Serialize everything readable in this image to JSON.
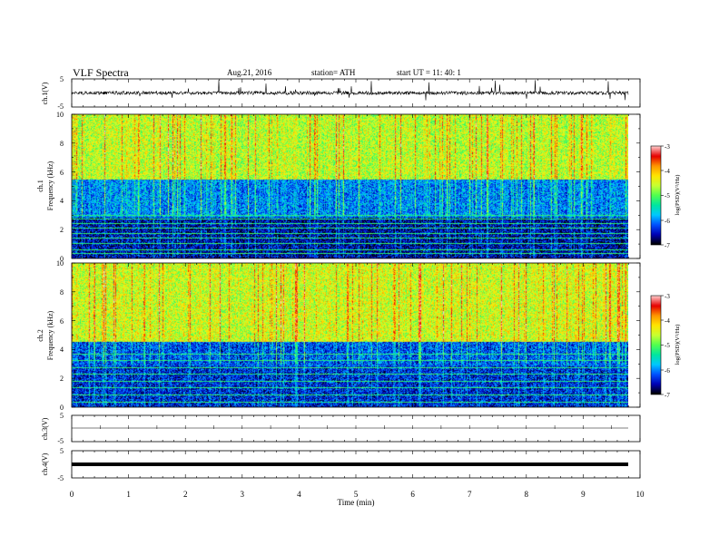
{
  "header": {
    "title": "VLF  Spectra",
    "date": "Aug.21, 2016",
    "station": "station= ATH",
    "start": "start  UT  =   11: 40: 1"
  },
  "colors": {
    "background": "#ffffff",
    "axes": "#000000",
    "colormap": [
      "#000000",
      "#0000b4",
      "#0050ff",
      "#00c8ff",
      "#00e6a0",
      "#50ff50",
      "#c8ff32",
      "#ffe600",
      "#ff9600",
      "#e60000",
      "#ffc8c8"
    ]
  },
  "chart_data": [
    {
      "type": "line",
      "panel": "ch1-waveform",
      "ylabel": "ch.1(V)",
      "ylim": [
        -5,
        5
      ],
      "yticks": [
        "5",
        "-5"
      ],
      "xlim": [
        0,
        10
      ],
      "mean": 0,
      "noise_amplitude": 1.2,
      "spike_amplitude": 3.5
    },
    {
      "type": "heatmap",
      "panel": "ch1-spectrogram",
      "ylabel": "ch.1",
      "ylabel2": "Frequency  (kHz)",
      "ylim": [
        0,
        10
      ],
      "yticks": [
        "0",
        "2",
        "4",
        "6",
        "8",
        "10"
      ],
      "xlim": [
        0,
        10
      ],
      "data_end_min": 9.8,
      "colorbar": {
        "label": "log(PSD)(V²/Hz)",
        "range": [
          -7,
          -3
        ],
        "ticks": [
          "-3",
          "-4",
          "-5",
          "-6",
          "-7"
        ]
      },
      "bands_khz": [
        {
          "from": 0,
          "to": 2.8,
          "level": -6.6
        },
        {
          "from": 2.8,
          "to": 5.5,
          "level": -6.0
        },
        {
          "from": 5.5,
          "to": 10,
          "level": -4.6
        }
      ],
      "tones_khz": [
        0.3,
        0.6,
        1.0,
        1.4,
        1.7,
        2.1,
        2.4,
        2.7,
        3.0
      ]
    },
    {
      "type": "heatmap",
      "panel": "ch2-spectrogram",
      "ylabel": "ch.2",
      "ylabel2": "Frequency  (kHz)",
      "ylim": [
        0,
        10
      ],
      "yticks": [
        "0",
        "2",
        "4",
        "6",
        "8",
        "10"
      ],
      "xlim": [
        0,
        10
      ],
      "data_end_min": 9.8,
      "colorbar": {
        "label": "log(PSD)(V²/Hz)",
        "range": [
          -7,
          -3
        ],
        "ticks": [
          "-3",
          "-4",
          "-5",
          "-6",
          "-7"
        ]
      },
      "bands_khz": [
        {
          "from": 0,
          "to": 2.8,
          "level": -6.4
        },
        {
          "from": 2.8,
          "to": 4.5,
          "level": -6.2
        },
        {
          "from": 4.5,
          "to": 10,
          "level": -4.5
        }
      ],
      "tones_khz": [
        0.3,
        0.8,
        1.3,
        1.8,
        2.3,
        2.7,
        3.2,
        3.7
      ]
    },
    {
      "type": "line",
      "panel": "ch3-waveform",
      "ylabel": "ch.3(V)",
      "ylim": [
        -5,
        5
      ],
      "yticks": [
        "5",
        "-5"
      ],
      "xlim": [
        0,
        10
      ],
      "value": 0,
      "line_weight": "thin"
    },
    {
      "type": "line",
      "panel": "ch4-waveform",
      "ylabel": "ch.4(V)",
      "ylim": [
        -5,
        5
      ],
      "yticks": [
        "5",
        "-5"
      ],
      "xlim": [
        0,
        10
      ],
      "value": 0,
      "line_weight": "thick"
    }
  ],
  "xaxis": {
    "label": "Time  (min)",
    "ticks": [
      "0",
      "1",
      "2",
      "3",
      "4",
      "5",
      "6",
      "7",
      "8",
      "9",
      "10"
    ]
  }
}
